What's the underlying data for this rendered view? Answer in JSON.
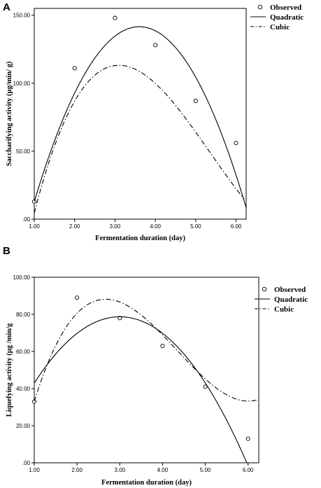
{
  "chart_data": [
    {
      "type": "scatter",
      "panel_label": "A",
      "xlabel": "Fermentation duration (day)",
      "ylabel": "Saccharifying activity (µg/min/  g)",
      "xlim": [
        1.0,
        6.25
      ],
      "ylim": [
        0,
        155
      ],
      "x_ticks": [
        "1.00",
        "2.00",
        "3.00",
        "4.00",
        "5.00",
        "6.00"
      ],
      "y_ticks": [
        ".00",
        "50.00",
        "100.00",
        "150.00"
      ],
      "legend": [
        "Observed",
        "Quadratic",
        "Cubic"
      ],
      "legend_position": "top-right",
      "grid": false,
      "series": [
        {
          "name": "Observed",
          "kind": "points",
          "x": [
            1,
            2,
            3,
            4,
            5,
            6
          ],
          "y": [
            13,
            111,
            148,
            128,
            87,
            56
          ]
        },
        {
          "name": "Quadratic",
          "kind": "curve",
          "style": "solid",
          "x_range": [
            1.0,
            6.25
          ],
          "coefficients": [
            -105.08,
            136.9,
            -19.0
          ]
        },
        {
          "name": "Cubic",
          "kind": "curve",
          "style": "dash-dot",
          "x_range": [
            1.0,
            6.2
          ],
          "coefficients": [
            -151.0,
            197.5,
            -44.9,
            2.8
          ]
        }
      ]
    },
    {
      "type": "scatter",
      "panel_label": "B",
      "xlabel": "Fermentation duration (day)",
      "ylabel": "Liquefying activity (µg /min/g",
      "xlim": [
        1.0,
        6.25
      ],
      "ylim": [
        0,
        100
      ],
      "x_ticks": [
        "1.00",
        "2.00",
        "3.00",
        "4.00",
        "5.00",
        "6.00"
      ],
      "y_ticks": [
        ".00",
        "20.00",
        "40.00",
        "60.00",
        "80.00",
        "100.00"
      ],
      "legend": [
        "Observed",
        "Quadratic",
        "Cubic"
      ],
      "legend_position": "top-right",
      "grid": false,
      "series": [
        {
          "name": "Observed",
          "kind": "points",
          "x": [
            1,
            2,
            3,
            4,
            5,
            6
          ],
          "y": [
            33,
            89,
            78,
            63,
            41,
            13
          ]
        },
        {
          "name": "Quadratic",
          "kind": "curve",
          "style": "solid",
          "x_range": [
            1.0,
            6.05
          ],
          "coefficients": [
            -1.73,
            53.6,
            -8.93
          ]
        },
        {
          "name": "Cubic",
          "kind": "curve",
          "style": "dash-dot",
          "x_range": [
            1.0,
            6.2
          ],
          "coefficients": [
            -73.8,
            142.4,
            -38.52,
            2.96
          ]
        }
      ]
    }
  ]
}
